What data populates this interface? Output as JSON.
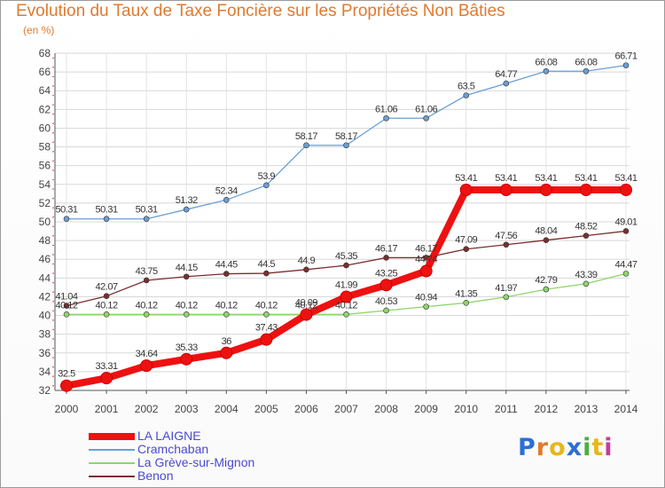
{
  "header": {
    "title": "Evolution du Taux de Taxe Foncière sur les Propriétés Non Bâties",
    "unit": "(en %)"
  },
  "brand": {
    "text": "Proxiti",
    "colors": [
      "#2a6fd6",
      "#e07a2e",
      "#e5b81a",
      "#2a6fd6",
      "#4caf3a",
      "#e5b81a",
      "#c63aa0"
    ]
  },
  "chart_data": {
    "type": "line",
    "title": "Evolution du Taux de Taxe Foncière sur les Propriétés Non Bâties",
    "ylabel": "(en %)",
    "xlabel": "",
    "x": [
      "2000",
      "2001",
      "2002",
      "2003",
      "2004",
      "2005",
      "2006",
      "2007",
      "2008",
      "2009",
      "2010",
      "2011",
      "2012",
      "2013",
      "2014"
    ],
    "ylim": [
      32,
      68
    ],
    "yticks": [
      32,
      34,
      36,
      38,
      40,
      42,
      44,
      46,
      48,
      50,
      52,
      54,
      56,
      58,
      60,
      62,
      64,
      66,
      68
    ],
    "grid": true,
    "legend": "bottom-left",
    "series": [
      {
        "name": "LA LAIGNE",
        "color": "#ee1111",
        "emphasis": true,
        "values": [
          32.5,
          33.31,
          34.64,
          35.33,
          36,
          37.43,
          40.09,
          41.99,
          43.25,
          44.74,
          53.41,
          53.41,
          53.41,
          53.41,
          53.41
        ],
        "labels": [
          "32.5",
          "33.31",
          "34.64",
          "35.33",
          "36",
          "37.43",
          "40.09",
          "41.99",
          "43.25",
          "44.74",
          "53.41",
          "53.41",
          "53.41",
          "53.41",
          "53.41"
        ]
      },
      {
        "name": "Cramchaban",
        "color": "#6a9fd4",
        "values": [
          50.31,
          50.31,
          50.31,
          51.32,
          52.34,
          53.9,
          58.17,
          58.17,
          61.06,
          61.06,
          63.5,
          64.77,
          66.08,
          66.08,
          66.71
        ],
        "labels": [
          "50.31",
          "50.31",
          "50.31",
          "51.32",
          "52.34",
          "53.9",
          "58.17",
          "58.17",
          "61.06",
          "61.06",
          "63.5",
          "64.77",
          "66.08",
          "66.08",
          "66.71"
        ]
      },
      {
        "name": "La Grève-sur-Mignon",
        "color": "#8ed66a",
        "values": [
          40.12,
          40.12,
          40.12,
          40.12,
          40.12,
          40.12,
          40.12,
          40.12,
          40.53,
          40.94,
          41.35,
          41.97,
          42.79,
          43.39,
          44.47
        ],
        "labels": [
          "40.12",
          "40.12",
          "40.12",
          "40.12",
          "40.12",
          "40.12",
          "40.12",
          "40.12",
          "40.53",
          "40.94",
          "41.35",
          "41.97",
          "42.79",
          "43.39",
          "44.47"
        ]
      },
      {
        "name": "Benon",
        "color": "#7a2f2f",
        "values": [
          41.04,
          42.07,
          43.75,
          44.15,
          44.45,
          44.5,
          44.9,
          45.35,
          46.17,
          46.17,
          47.09,
          47.56,
          48.04,
          48.52,
          49.01
        ],
        "labels": [
          "41.04",
          "42.07",
          "43.75",
          "44.15",
          "44.45",
          "44.5",
          "44.9",
          "45.35",
          "46.17",
          "46.17",
          "47.09",
          "47.56",
          "48.04",
          "48.52",
          "49.01"
        ]
      }
    ]
  }
}
